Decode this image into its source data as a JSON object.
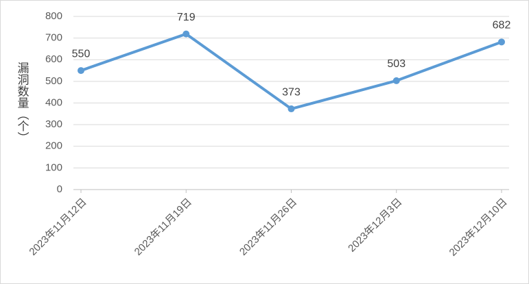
{
  "chart_data": {
    "type": "line",
    "y_label": "漏洞数量（个）",
    "categories": [
      "2023年11月12日",
      "2023年11月19日",
      "2023年11月26日",
      "2023年12月3日",
      "2023年12月10日"
    ],
    "series": [
      {
        "name": "漏洞数量",
        "color": "#5b9bd5",
        "values": [
          550,
          719,
          373,
          503,
          682
        ]
      }
    ],
    "ylim": [
      0,
      800
    ],
    "yticks": [
      0,
      100,
      200,
      300,
      400,
      500,
      600,
      700,
      800
    ],
    "grid": true
  }
}
